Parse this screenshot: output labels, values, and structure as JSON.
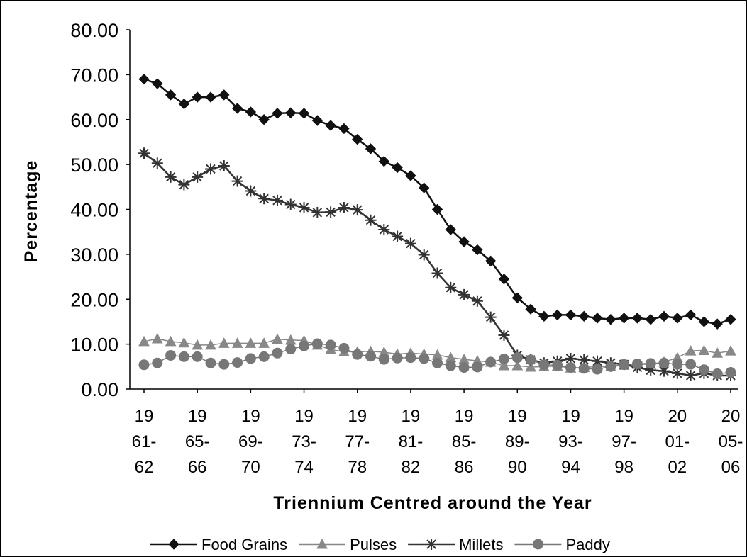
{
  "chart_data": {
    "type": "line",
    "x_label": "Triennium Centred around the Year",
    "y_label": "Percentage",
    "categories": [
      "19\n61-\n62",
      null,
      null,
      null,
      "19\n65-\n66",
      null,
      null,
      null,
      "19\n69-\n70",
      null,
      null,
      null,
      "19\n73-\n74",
      null,
      null,
      null,
      "19\n77-\n78",
      null,
      null,
      null,
      "19\n81-\n82",
      null,
      null,
      null,
      "19\n85-\n86",
      null,
      null,
      null,
      "19\n89-\n90",
      null,
      null,
      null,
      "19\n93-\n94",
      null,
      null,
      null,
      "19\n97-\n98",
      null,
      null,
      null,
      "20\n01-\n02",
      null,
      null,
      null,
      "20\n05-\n06"
    ],
    "ylim": [
      0,
      80
    ],
    "yticks": [
      {
        "value": 0,
        "label": "0.00"
      },
      {
        "value": 10,
        "label": "10.00"
      },
      {
        "value": 20,
        "label": "20.00"
      },
      {
        "value": 30,
        "label": "30.00"
      },
      {
        "value": 40,
        "label": "40.00"
      },
      {
        "value": 50,
        "label": "50.00"
      },
      {
        "value": 60,
        "label": "60.00"
      },
      {
        "value": 70,
        "label": "70.00"
      },
      {
        "value": 80,
        "label": "80.00"
      }
    ],
    "legend": "bottom",
    "series": [
      {
        "name": "Food Grains",
        "color": "#111111",
        "marker": "diamond",
        "values": [
          69,
          68,
          65.5,
          63.5,
          65,
          65,
          65.5,
          62.5,
          61.7,
          60,
          61.4,
          61.5,
          61.4,
          59.8,
          58.7,
          58,
          55.6,
          53.5,
          50.7,
          49.3,
          47.5,
          44.8,
          40,
          35.5,
          32.8,
          31,
          28.5,
          24.5,
          20.3,
          17.8,
          16.2,
          16.5,
          16.5,
          16.2,
          15.8,
          15.5,
          15.8,
          15.8,
          15.5,
          16.2,
          15.8,
          16.5,
          15,
          14.5,
          15.5
        ]
      },
      {
        "name": "Pulses",
        "color": "#888888",
        "marker": "triangle",
        "values": [
          10.6,
          11.2,
          10.6,
          10.3,
          9.8,
          9.8,
          10.2,
          10.2,
          10.2,
          10.2,
          11.1,
          10.9,
          10.8,
          9.8,
          8.8,
          8.3,
          8.3,
          8.4,
          8.2,
          7.8,
          8,
          7.8,
          7.6,
          7,
          6.6,
          6.3,
          6,
          5.2,
          5.2,
          4.9,
          5,
          5.1,
          4.7,
          4.8,
          5,
          5,
          5.3,
          5.5,
          5.5,
          6,
          7,
          8.5,
          8.6,
          8,
          8.5
        ]
      },
      {
        "name": "Millets",
        "color": "#333333",
        "marker": "star",
        "values": [
          52.5,
          50.3,
          47.2,
          45.5,
          47.2,
          49,
          49.7,
          46.3,
          44.1,
          42.4,
          42,
          41.1,
          40.4,
          39.3,
          39.4,
          40.4,
          39.9,
          37.6,
          35.5,
          34,
          32.4,
          29.9,
          25.8,
          22.6,
          21,
          19.6,
          16,
          12,
          7.5,
          6.5,
          5.8,
          6.2,
          6.8,
          6.5,
          6.2,
          5.8,
          5.5,
          4.8,
          4.2,
          4,
          3.5,
          3,
          3.5,
          3,
          3
        ]
      },
      {
        "name": "Paddy",
        "color": "#777777",
        "marker": "circle",
        "values": [
          5.4,
          5.8,
          7.5,
          7.2,
          7.2,
          5.8,
          5.5,
          5.9,
          6.8,
          7.2,
          8,
          8.9,
          9.6,
          10.1,
          9.8,
          9.1,
          7.7,
          7.3,
          6.6,
          6.9,
          7,
          6.8,
          5.8,
          5.2,
          4.8,
          4.9,
          6,
          6.7,
          7,
          6.5,
          5.4,
          5.3,
          4.8,
          4.6,
          4.4,
          5,
          5.5,
          5.6,
          5.7,
          5.8,
          5.5,
          5.5,
          4.3,
          3.4,
          3.7
        ]
      }
    ]
  }
}
